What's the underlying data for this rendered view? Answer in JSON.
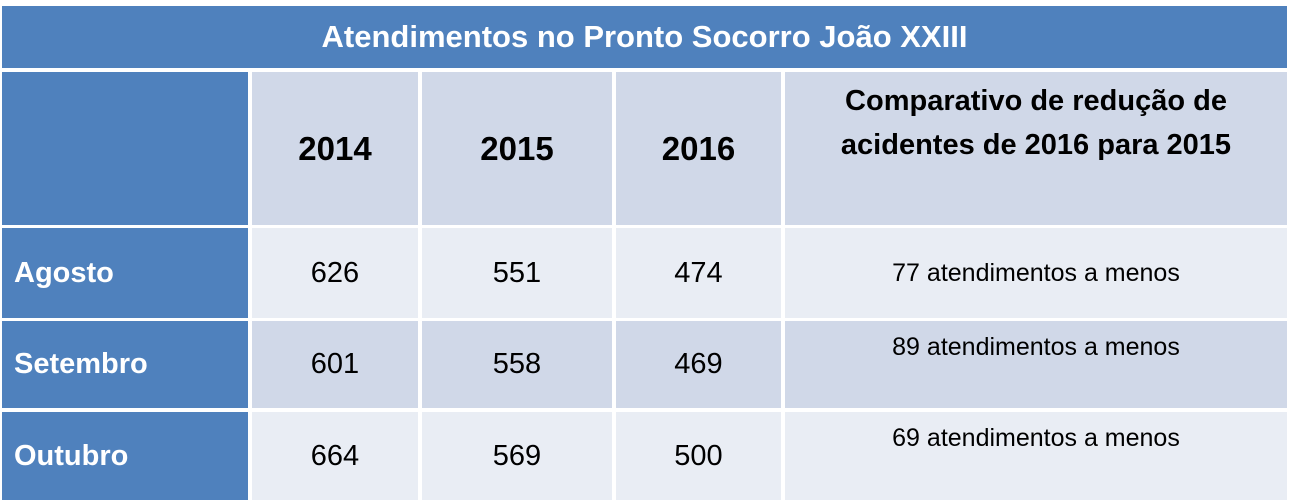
{
  "table": {
    "title": "Atendimentos no Pronto Socorro João XXIII",
    "header": [
      "2014",
      "2015",
      "2016",
      "Comparativo de redução de acidentes de 2016 para 2015"
    ],
    "rows": [
      [
        "Agosto",
        626,
        551,
        474,
        "77 atendimentos a menos"
      ],
      [
        "Setembro",
        601,
        558,
        469,
        "89 atendimentos a menos"
      ],
      [
        "Outubro",
        664,
        569,
        500,
        "69 atendimentos a menos"
      ]
    ]
  }
}
